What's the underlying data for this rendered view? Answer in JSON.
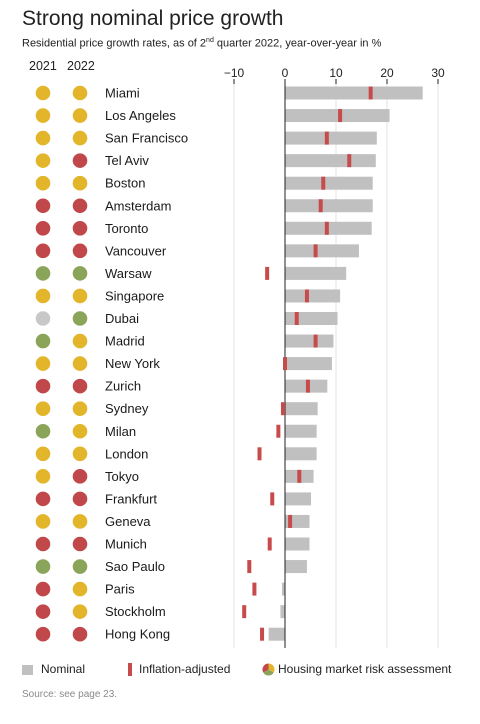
{
  "title": "Strong nominal price growth",
  "subtitle_main": "Residential price growth rates, as of 2",
  "subtitle_sup": "nd",
  "subtitle_rest": " quarter 2022, year-over-year in %",
  "year_labels": [
    "2021",
    "2022"
  ],
  "legend": {
    "nominal": "Nominal",
    "inflation": "Inflation-adjusted",
    "risk": "Housing market risk assessment"
  },
  "source": "Source: see page 23.",
  "colors": {
    "nominal": "#c0c0c0",
    "inflation": "#c84b4b",
    "risk_red": "#c0474a",
    "risk_yellow": "#e3b52a",
    "risk_green": "#8aa55a",
    "risk_gray": "#c8c8c8",
    "axis": "#222222",
    "grid": "#e3e3e3"
  },
  "chart_data": {
    "type": "bar",
    "orientation": "horizontal",
    "x_ticks": [
      -10,
      0,
      10,
      20,
      30
    ],
    "x_tick_labels": [
      "−10",
      "0",
      "10",
      "20",
      "30"
    ],
    "xlim": [
      -11,
      32
    ],
    "grid": true,
    "categories": [
      "Miami",
      "Los Angeles",
      "San Francisco",
      "Tel Aviv",
      "Boston",
      "Amsterdam",
      "Toronto",
      "Vancouver",
      "Warsaw",
      "Singapore",
      "Dubai",
      "Madrid",
      "New York",
      "Zurich",
      "Sydney",
      "Milan",
      "London",
      "Tokyo",
      "Frankfurt",
      "Geneva",
      "Munich",
      "Sao Paulo",
      "Paris",
      "Stockholm",
      "Hong Kong"
    ],
    "series": [
      {
        "name": "Nominal",
        "values": [
          27,
          20.5,
          18,
          17.8,
          17.2,
          17.2,
          17,
          14.5,
          12,
          10.8,
          10.3,
          9.5,
          9.2,
          8.3,
          6.4,
          6.2,
          6.2,
          5.6,
          5.1,
          4.8,
          4.8,
          4.3,
          -0.6,
          -0.9,
          -3.2
        ]
      },
      {
        "name": "Inflation-adjusted",
        "values": [
          16.8,
          10.8,
          8.2,
          12.6,
          7.5,
          7,
          8.2,
          6,
          -3.5,
          4.3,
          2.3,
          6,
          0,
          4.5,
          -0.4,
          -1.3,
          -5,
          2.8,
          -2.5,
          1,
          -3,
          -7,
          -6,
          -8,
          -4.5
        ]
      }
    ],
    "risk_2021": [
      "yellow",
      "yellow",
      "yellow",
      "yellow",
      "yellow",
      "red",
      "red",
      "red",
      "green",
      "yellow",
      "gray",
      "green",
      "yellow",
      "red",
      "yellow",
      "green",
      "yellow",
      "yellow",
      "red",
      "yellow",
      "red",
      "green",
      "red",
      "red",
      "red"
    ],
    "risk_2022": [
      "yellow",
      "yellow",
      "yellow",
      "red",
      "yellow",
      "red",
      "red",
      "red",
      "green",
      "yellow",
      "green",
      "yellow",
      "yellow",
      "red",
      "yellow",
      "yellow",
      "yellow",
      "red",
      "red",
      "yellow",
      "red",
      "green",
      "yellow",
      "yellow",
      "red"
    ]
  }
}
